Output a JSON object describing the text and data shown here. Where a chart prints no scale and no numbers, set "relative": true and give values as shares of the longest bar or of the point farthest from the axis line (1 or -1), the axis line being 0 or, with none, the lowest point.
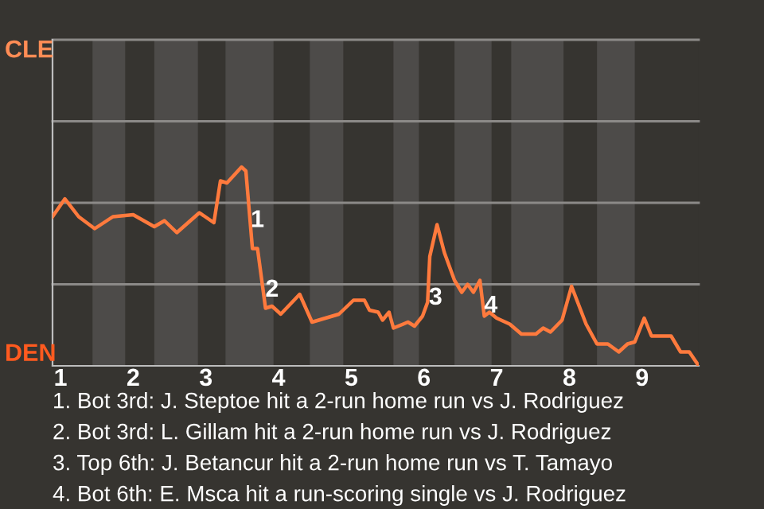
{
  "chart_data": {
    "type": "line",
    "relative": true,
    "x": [
      0.89,
      1.06,
      1.25,
      1.47,
      1.72,
      2.0,
      2.29,
      2.43,
      2.6,
      2.91,
      3.11,
      3.2,
      3.29,
      3.49,
      3.55,
      3.64,
      3.71,
      3.82,
      3.91,
      4.03,
      4.29,
      4.46,
      4.83,
      5.03,
      5.18,
      5.25,
      5.37,
      5.43,
      5.52,
      5.58,
      5.78,
      5.87,
      5.98,
      6.05,
      6.08,
      6.18,
      6.28,
      6.42,
      6.52,
      6.6,
      6.68,
      6.77,
      6.83,
      6.9,
      7.0,
      7.18,
      7.34,
      7.54,
      7.64,
      7.74,
      7.9,
      8.03,
      8.23,
      8.38,
      8.53,
      8.68,
      8.8,
      8.9,
      9.03,
      9.13,
      9.4,
      9.53,
      9.65,
      9.78
    ],
    "series": [
      {
        "color": "#ff7a3d",
        "values": [
          0.75,
          0.84,
          0.75,
          0.69,
          0.75,
          0.76,
          0.7,
          0.73,
          0.67,
          0.77,
          0.72,
          0.93,
          0.92,
          1.0,
          0.98,
          0.59,
          0.59,
          0.29,
          0.3,
          0.26,
          0.36,
          0.22,
          0.26,
          0.33,
          0.33,
          0.28,
          0.27,
          0.23,
          0.27,
          0.19,
          0.22,
          0.2,
          0.25,
          0.32,
          0.55,
          0.71,
          0.57,
          0.43,
          0.37,
          0.41,
          0.37,
          0.43,
          0.25,
          0.27,
          0.24,
          0.21,
          0.16,
          0.16,
          0.19,
          0.17,
          0.23,
          0.4,
          0.21,
          0.11,
          0.11,
          0.07,
          0.11,
          0.12,
          0.24,
          0.15,
          0.15,
          0.07,
          0.07,
          0.0
        ]
      }
    ],
    "xlim": [
      0.89,
      9.78
    ],
    "xticks": [
      1,
      2,
      3,
      4,
      5,
      6,
      7,
      8,
      9
    ],
    "marker": "none",
    "line_style": "solid",
    "ref_lines": [
      {
        "axis": "y",
        "value": 0.41,
        "color": "#8c8a88"
      },
      {
        "axis": "y",
        "value": 0.82,
        "color": "#8c8a88"
      },
      {
        "axis": "y",
        "value": 1.23,
        "color": "#8c8a88"
      },
      {
        "axis": "y",
        "value": 1.64,
        "color": "#8c8a88"
      }
    ],
    "bands": [
      {
        "axis": "x",
        "from": 1.44,
        "to": 1.89,
        "color": "#4d4b49"
      },
      {
        "axis": "x",
        "from": 2.29,
        "to": 2.89,
        "color": "#4d4b49"
      },
      {
        "axis": "x",
        "from": 3.27,
        "to": 3.93,
        "color": "#4d4b49"
      },
      {
        "axis": "x",
        "from": 4.43,
        "to": 4.89,
        "color": "#4d4b49"
      },
      {
        "axis": "x",
        "from": 5.58,
        "to": 5.93,
        "color": "#4d4b49"
      },
      {
        "axis": "x",
        "from": 6.42,
        "to": 6.93,
        "color": "#4d4b49"
      },
      {
        "axis": "x",
        "from": 7.2,
        "to": 7.92,
        "color": "#4d4b49"
      },
      {
        "axis": "x",
        "from": 8.38,
        "to": 8.9,
        "color": "#4d4b49"
      }
    ],
    "annotations": [
      "CLE",
      "DEN",
      {
        "text": "1",
        "x": 3.71,
        "y": 0.73
      },
      {
        "text": "2",
        "x": 3.91,
        "y": 0.38
      },
      {
        "text": "3",
        "x": 6.16,
        "y": 0.34
      },
      {
        "text": "4",
        "x": 6.92,
        "y": 0.3
      },
      "1. Bot 3rd: J. Steptoe hit a 2-run home run vs J. Rodriguez",
      "2. Bot 3rd: L. Gillam hit a 2-run home run vs J. Rodriguez",
      "3. Top 6th: J. Betancur hit a 2-run home run vs T. Tamayo",
      "4. Bot 6th: E. Msca hit a run-scoring single vs J. Rodriguez"
    ]
  }
}
